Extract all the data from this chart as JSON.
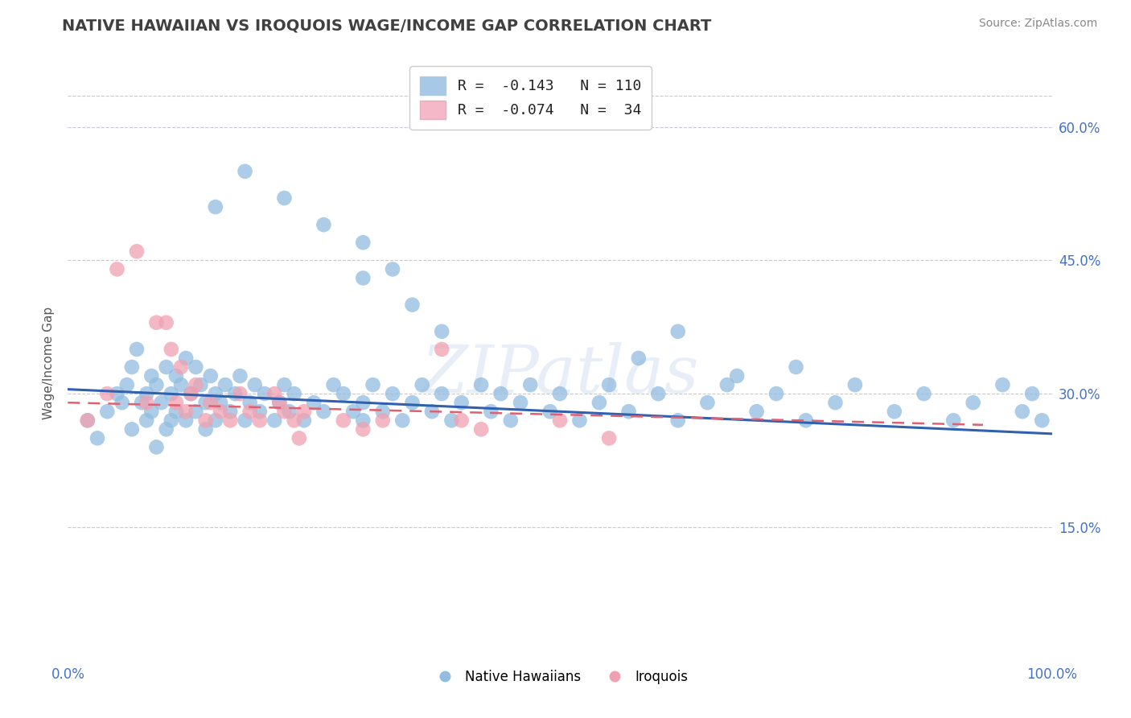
{
  "title": "NATIVE HAWAIIAN VS IROQUOIS WAGE/INCOME GAP CORRELATION CHART",
  "source": "Source: ZipAtlas.com",
  "ylabel": "Wage/Income Gap",
  "xlim": [
    0.0,
    1.0
  ],
  "ylim": [
    0.0,
    0.67
  ],
  "ytick_values": [
    0.15,
    0.3,
    0.45,
    0.6
  ],
  "ytick_labels": [
    "15.0%",
    "30.0%",
    "45.0%",
    "60.0%"
  ],
  "xtick_values": [
    0.0,
    1.0
  ],
  "xtick_labels": [
    "0.0%",
    "100.0%"
  ],
  "legend_r_label_1": "R =  -0.143   N = 110",
  "legend_r_label_2": "R =  -0.074   N =  34",
  "legend_dot_label_1": "Native Hawaiians",
  "legend_dot_label_2": "Iroquois",
  "watermark": "ZIPatlas",
  "blue_scatter_color": "#92bce0",
  "pink_scatter_color": "#f0a0b0",
  "blue_line_color": "#3060b0",
  "pink_line_color": "#e06070",
  "legend_blue_color": "#a8c8e8",
  "legend_pink_color": "#f4b8c8",
  "background_color": "#ffffff",
  "grid_color": "#c8c8d8",
  "title_color": "#404040",
  "axis_tick_color": "#4472c4",
  "ylabel_color": "#555555",
  "source_color": "#888888",
  "nh_x": [
    0.02,
    0.03,
    0.04,
    0.05,
    0.055,
    0.06,
    0.065,
    0.065,
    0.07,
    0.075,
    0.08,
    0.08,
    0.085,
    0.085,
    0.09,
    0.09,
    0.095,
    0.1,
    0.1,
    0.105,
    0.105,
    0.11,
    0.11,
    0.115,
    0.12,
    0.12,
    0.125,
    0.13,
    0.13,
    0.135,
    0.14,
    0.14,
    0.145,
    0.15,
    0.15,
    0.155,
    0.16,
    0.165,
    0.17,
    0.175,
    0.18,
    0.185,
    0.19,
    0.195,
    0.2,
    0.21,
    0.215,
    0.22,
    0.225,
    0.23,
    0.24,
    0.25,
    0.26,
    0.27,
    0.28,
    0.29,
    0.3,
    0.3,
    0.31,
    0.32,
    0.33,
    0.34,
    0.35,
    0.36,
    0.37,
    0.38,
    0.39,
    0.4,
    0.42,
    0.43,
    0.44,
    0.45,
    0.46,
    0.47,
    0.49,
    0.5,
    0.52,
    0.54,
    0.55,
    0.57,
    0.6,
    0.62,
    0.65,
    0.67,
    0.7,
    0.72,
    0.75,
    0.78,
    0.8,
    0.84,
    0.87,
    0.9,
    0.92,
    0.95,
    0.97,
    0.98,
    0.99,
    0.3,
    0.35,
    0.38,
    0.15,
    0.18,
    0.22,
    0.26,
    0.3,
    0.33,
    0.58,
    0.62,
    0.68,
    0.74
  ],
  "nh_y": [
    0.27,
    0.25,
    0.28,
    0.3,
    0.29,
    0.31,
    0.33,
    0.26,
    0.35,
    0.29,
    0.3,
    0.27,
    0.32,
    0.28,
    0.31,
    0.24,
    0.29,
    0.33,
    0.26,
    0.3,
    0.27,
    0.32,
    0.28,
    0.31,
    0.34,
    0.27,
    0.3,
    0.33,
    0.28,
    0.31,
    0.29,
    0.26,
    0.32,
    0.3,
    0.27,
    0.29,
    0.31,
    0.28,
    0.3,
    0.32,
    0.27,
    0.29,
    0.31,
    0.28,
    0.3,
    0.27,
    0.29,
    0.31,
    0.28,
    0.3,
    0.27,
    0.29,
    0.28,
    0.31,
    0.3,
    0.28,
    0.27,
    0.29,
    0.31,
    0.28,
    0.3,
    0.27,
    0.29,
    0.31,
    0.28,
    0.3,
    0.27,
    0.29,
    0.31,
    0.28,
    0.3,
    0.27,
    0.29,
    0.31,
    0.28,
    0.3,
    0.27,
    0.29,
    0.31,
    0.28,
    0.3,
    0.27,
    0.29,
    0.31,
    0.28,
    0.3,
    0.27,
    0.29,
    0.31,
    0.28,
    0.3,
    0.27,
    0.29,
    0.31,
    0.28,
    0.3,
    0.27,
    0.43,
    0.4,
    0.37,
    0.51,
    0.55,
    0.52,
    0.49,
    0.47,
    0.44,
    0.34,
    0.37,
    0.32,
    0.33
  ],
  "iq_x": [
    0.02,
    0.04,
    0.05,
    0.07,
    0.08,
    0.09,
    0.1,
    0.105,
    0.11,
    0.115,
    0.12,
    0.125,
    0.13,
    0.14,
    0.145,
    0.155,
    0.165,
    0.175,
    0.185,
    0.195,
    0.21,
    0.215,
    0.22,
    0.23,
    0.235,
    0.24,
    0.28,
    0.3,
    0.32,
    0.38,
    0.4,
    0.42,
    0.5,
    0.55
  ],
  "iq_y": [
    0.27,
    0.3,
    0.44,
    0.46,
    0.29,
    0.38,
    0.38,
    0.35,
    0.29,
    0.33,
    0.28,
    0.3,
    0.31,
    0.27,
    0.29,
    0.28,
    0.27,
    0.3,
    0.28,
    0.27,
    0.3,
    0.29,
    0.28,
    0.27,
    0.25,
    0.28,
    0.27,
    0.26,
    0.27,
    0.35,
    0.27,
    0.26,
    0.27,
    0.25
  ],
  "nh_line_x": [
    0.0,
    1.0
  ],
  "nh_line_y": [
    0.305,
    0.255
  ],
  "iq_line_x": [
    0.0,
    0.93
  ],
  "iq_line_y": [
    0.29,
    0.265
  ]
}
